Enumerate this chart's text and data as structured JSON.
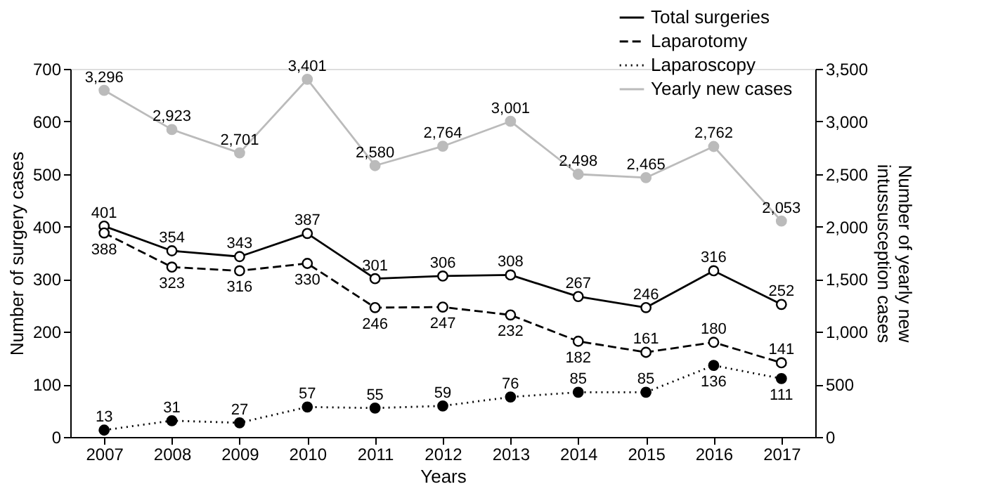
{
  "chart_data": {
    "type": "line",
    "xlabel": "Years",
    "ylabel": "Number of surgery cases",
    "y2label": "Number of yearly new intussusception cases",
    "categories": [
      "2007",
      "2008",
      "2009",
      "2010",
      "2011",
      "2012",
      "2013",
      "2014",
      "2015",
      "2016",
      "2017"
    ],
    "ylim": [
      0,
      700
    ],
    "yticks": [
      0,
      100,
      200,
      300,
      400,
      500,
      600,
      700
    ],
    "y2lim": [
      0,
      3500
    ],
    "y2ticks": [
      0,
      {
        "value": 500,
        "label": "500"
      },
      {
        "value": 1000,
        "label": "1,000"
      },
      {
        "value": 1500,
        "label": "1,500"
      },
      {
        "value": 2000,
        "label": "2,000"
      },
      {
        "value": 2500,
        "label": "2,500"
      },
      {
        "value": 3000,
        "label": "3,000"
      },
      {
        "value": 3500,
        "label": "3,500"
      }
    ],
    "grid": false,
    "legend": "top right",
    "marker": "circle",
    "series": [
      {
        "name": "Total surgeries",
        "color": "#000000",
        "line_style": "solid",
        "values": [
          401,
          354,
          343,
          387,
          301,
          306,
          308,
          267,
          246,
          316,
          252
        ],
        "value_labels": [
          "401",
          "354",
          "343",
          "387",
          "301",
          "306",
          "308",
          "267",
          "246",
          "316",
          "252"
        ]
      },
      {
        "name": "Laparotomy",
        "color": "#000000",
        "line_style": "dashed",
        "values": [
          388,
          323,
          316,
          330,
          246,
          247,
          232,
          182,
          161,
          180,
          141
        ],
        "value_labels": [
          "388",
          "323",
          "316",
          "330",
          "246",
          "247",
          "232",
          "182",
          "161",
          "180",
          "141"
        ]
      },
      {
        "name": "Laparoscopy",
        "color": "#000000",
        "line_style": "dotted",
        "values": [
          13,
          31,
          27,
          57,
          55,
          59,
          76,
          85,
          85,
          136,
          111
        ],
        "value_labels": [
          "13",
          "31",
          "27",
          "57",
          "55",
          "59",
          "76",
          "85",
          "85",
          "136",
          "111"
        ]
      },
      {
        "name": "Yearly new cases",
        "color": "#bbbbbb",
        "line_style": "solid",
        "axis": "y2",
        "values": [
          3296,
          2923,
          2701,
          3401,
          2580,
          2764,
          3001,
          2498,
          2465,
          2762,
          2053
        ],
        "value_labels": [
          "3,296",
          "2,923",
          "2,701",
          "3,401",
          "2,580",
          "2,764",
          "3,001",
          "2,498",
          "2,465",
          "2,762",
          "2,053"
        ]
      }
    ]
  }
}
